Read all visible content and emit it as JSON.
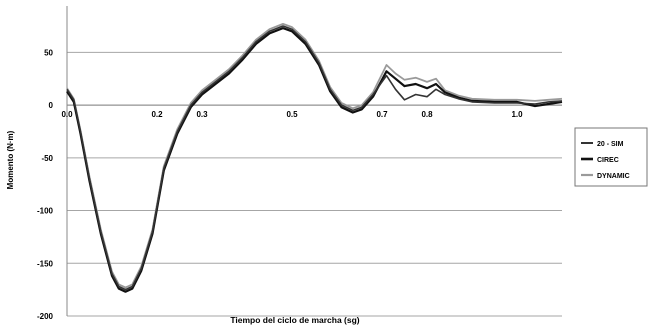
{
  "chart_data": {
    "type": "line",
    "title": "",
    "xlabel": "Tiempo del ciclo de marcha (sg)",
    "ylabel": "Momento (N·m)",
    "xlim": [
      0,
      1.1
    ],
    "ylim": [
      -200,
      75
    ],
    "x_ticks": [
      "0.0",
      "0.2",
      "0.3",
      "0.5",
      "0.7",
      "0.8",
      "1.0"
    ],
    "x_tick_values": [
      0.0,
      0.2,
      0.3,
      0.5,
      0.7,
      0.8,
      1.0
    ],
    "y_ticks": [
      "50",
      "0",
      "-50",
      "-100",
      "-150",
      "-200"
    ],
    "y_tick_values": [
      50,
      0,
      -50,
      -100,
      -150,
      -200
    ],
    "grid": true,
    "legend_position": "right",
    "colors": {
      "20-SIM": "#333333",
      "CIREC": "#111111",
      "DYNAMIC": "#9a9a9a"
    },
    "series": [
      {
        "name": "20 - SIM",
        "points": [
          [
            0.0,
            15
          ],
          [
            0.015,
            5
          ],
          [
            0.03,
            -25
          ],
          [
            0.05,
            -70
          ],
          [
            0.075,
            -120
          ],
          [
            0.1,
            -160
          ],
          [
            0.115,
            -172
          ],
          [
            0.13,
            -175
          ],
          [
            0.145,
            -172
          ],
          [
            0.165,
            -155
          ],
          [
            0.19,
            -120
          ],
          [
            0.215,
            -60
          ],
          [
            0.245,
            -25
          ],
          [
            0.275,
            0
          ],
          [
            0.3,
            12
          ],
          [
            0.33,
            22
          ],
          [
            0.36,
            32
          ],
          [
            0.39,
            45
          ],
          [
            0.42,
            60
          ],
          [
            0.45,
            70
          ],
          [
            0.48,
            75
          ],
          [
            0.5,
            72
          ],
          [
            0.53,
            60
          ],
          [
            0.56,
            40
          ],
          [
            0.585,
            15
          ],
          [
            0.61,
            0
          ],
          [
            0.635,
            -5
          ],
          [
            0.655,
            -2
          ],
          [
            0.68,
            10
          ],
          [
            0.71,
            28
          ],
          [
            0.73,
            15
          ],
          [
            0.75,
            5
          ],
          [
            0.775,
            10
          ],
          [
            0.8,
            8
          ],
          [
            0.82,
            15
          ],
          [
            0.84,
            10
          ],
          [
            0.87,
            6
          ],
          [
            0.9,
            3
          ],
          [
            0.95,
            2
          ],
          [
            1.0,
            2
          ],
          [
            1.04,
            1
          ],
          [
            1.07,
            3
          ],
          [
            1.1,
            4
          ]
        ]
      },
      {
        "name": "CIREC",
        "points": [
          [
            0.0,
            13
          ],
          [
            0.015,
            3
          ],
          [
            0.03,
            -27
          ],
          [
            0.05,
            -72
          ],
          [
            0.075,
            -122
          ],
          [
            0.1,
            -162
          ],
          [
            0.115,
            -174
          ],
          [
            0.13,
            -177
          ],
          [
            0.145,
            -174
          ],
          [
            0.165,
            -157
          ],
          [
            0.19,
            -122
          ],
          [
            0.215,
            -62
          ],
          [
            0.245,
            -27
          ],
          [
            0.275,
            -2
          ],
          [
            0.3,
            10
          ],
          [
            0.33,
            20
          ],
          [
            0.36,
            30
          ],
          [
            0.39,
            43
          ],
          [
            0.42,
            58
          ],
          [
            0.45,
            68
          ],
          [
            0.48,
            73
          ],
          [
            0.5,
            70
          ],
          [
            0.53,
            58
          ],
          [
            0.56,
            38
          ],
          [
            0.585,
            13
          ],
          [
            0.61,
            -2
          ],
          [
            0.635,
            -7
          ],
          [
            0.655,
            -4
          ],
          [
            0.68,
            8
          ],
          [
            0.71,
            32
          ],
          [
            0.73,
            25
          ],
          [
            0.75,
            18
          ],
          [
            0.775,
            20
          ],
          [
            0.8,
            16
          ],
          [
            0.82,
            20
          ],
          [
            0.84,
            12
          ],
          [
            0.87,
            7
          ],
          [
            0.9,
            4
          ],
          [
            0.95,
            3
          ],
          [
            1.0,
            3
          ],
          [
            1.04,
            -1
          ],
          [
            1.07,
            1
          ],
          [
            1.1,
            3
          ]
        ]
      },
      {
        "name": "DYNAMIC",
        "points": [
          [
            0.0,
            16
          ],
          [
            0.015,
            6
          ],
          [
            0.03,
            -24
          ],
          [
            0.05,
            -68
          ],
          [
            0.075,
            -118
          ],
          [
            0.1,
            -158
          ],
          [
            0.115,
            -170
          ],
          [
            0.13,
            -173
          ],
          [
            0.145,
            -170
          ],
          [
            0.165,
            -153
          ],
          [
            0.19,
            -118
          ],
          [
            0.215,
            -58
          ],
          [
            0.245,
            -23
          ],
          [
            0.275,
            2
          ],
          [
            0.3,
            14
          ],
          [
            0.33,
            24
          ],
          [
            0.36,
            34
          ],
          [
            0.39,
            47
          ],
          [
            0.42,
            62
          ],
          [
            0.45,
            72
          ],
          [
            0.48,
            77
          ],
          [
            0.5,
            74
          ],
          [
            0.53,
            62
          ],
          [
            0.56,
            42
          ],
          [
            0.585,
            17
          ],
          [
            0.61,
            2
          ],
          [
            0.635,
            -3
          ],
          [
            0.655,
            0
          ],
          [
            0.68,
            12
          ],
          [
            0.71,
            38
          ],
          [
            0.73,
            30
          ],
          [
            0.75,
            24
          ],
          [
            0.775,
            26
          ],
          [
            0.8,
            22
          ],
          [
            0.82,
            25
          ],
          [
            0.84,
            14
          ],
          [
            0.87,
            9
          ],
          [
            0.9,
            6
          ],
          [
            0.95,
            5
          ],
          [
            1.0,
            5
          ],
          [
            1.04,
            4
          ],
          [
            1.07,
            5
          ],
          [
            1.1,
            6
          ]
        ]
      }
    ]
  }
}
